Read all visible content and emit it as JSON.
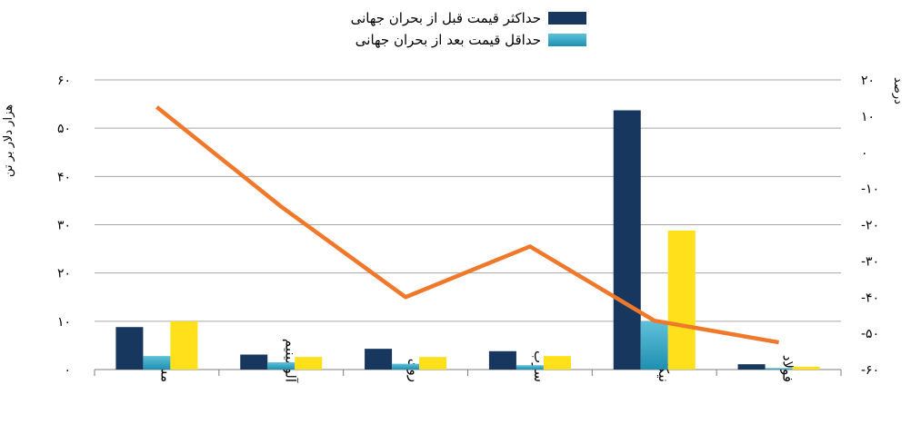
{
  "chart_data": {
    "type": "bar",
    "categories": [
      "مس",
      "آلومینیم",
      "روی",
      "سرب",
      "نیکل",
      "فولاد"
    ],
    "series": [
      {
        "name": "حداکثر قیمت قبل از بحران جهانی",
        "values": [
          8.8,
          3.1,
          4.3,
          3.8,
          53.7,
          1.1
        ],
        "color": "#17375e",
        "axis": "left"
      },
      {
        "name": "حداقل قیمت بعد از بحران جهانی",
        "values": [
          2.8,
          1.5,
          1.2,
          0.9,
          10.0,
          0.3
        ],
        "color": "#31a6c9",
        "axis": "left"
      },
      {
        "name": "",
        "values": [
          10.0,
          2.6,
          2.6,
          2.8,
          28.8,
          0.6
        ],
        "color": "#ffe01a",
        "axis": "left"
      },
      {
        "name": "",
        "type": "line",
        "values": [
          12.5,
          -15,
          -40,
          -26,
          -46.5,
          -52.5
        ],
        "color": "#f0782a",
        "axis": "right"
      }
    ],
    "ylabel": "هزار دلار بر تن",
    "ylabel_right": "درصد",
    "ylim": [
      0,
      60
    ],
    "ylim_right": [
      -60,
      20
    ],
    "yticks": [
      "۰",
      "۱۰",
      "۲۰",
      "۳۰",
      "۴۰",
      "۵۰",
      "۶۰"
    ],
    "yticks_right": [
      "-۶۰",
      "-۵۰",
      "-۴۰",
      "-۳۰",
      "-۲۰",
      "-۱۰",
      "۰",
      "۱۰",
      "۲۰"
    ],
    "grid": true,
    "legend": "top"
  },
  "colors": {
    "grid": "#a6a6a6",
    "axis": "#7f7f7f"
  }
}
